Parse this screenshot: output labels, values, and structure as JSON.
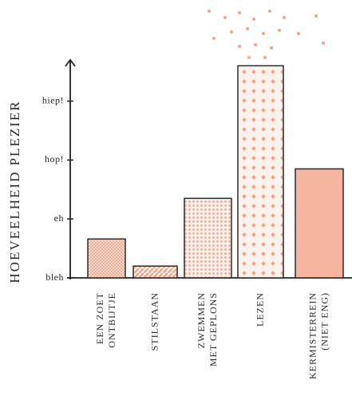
{
  "chart_data": {
    "type": "bar",
    "y_label": "HOEVEELHEID PLEZIER",
    "categories": [
      [
        "EEN ZOET",
        "ONTBIJTJE"
      ],
      [
        "STILSTAAN"
      ],
      [
        "ZWEMMEN",
        "MET GEPLONS"
      ],
      [
        "LEZEN"
      ],
      [
        "KERMISTERREIN",
        "(NIET ENG)"
      ]
    ],
    "values": [
      0.66,
      0.2,
      1.35,
      3.6,
      1.85
    ],
    "color": "#f2a68c",
    "ylim": [
      0,
      3.7
    ],
    "yticks": [
      {
        "value": 0,
        "label": "bleh"
      },
      {
        "value": 1,
        "label": "eh"
      },
      {
        "value": 2,
        "label": "hop!"
      },
      {
        "value": 3,
        "label": "hiep!"
      }
    ]
  }
}
